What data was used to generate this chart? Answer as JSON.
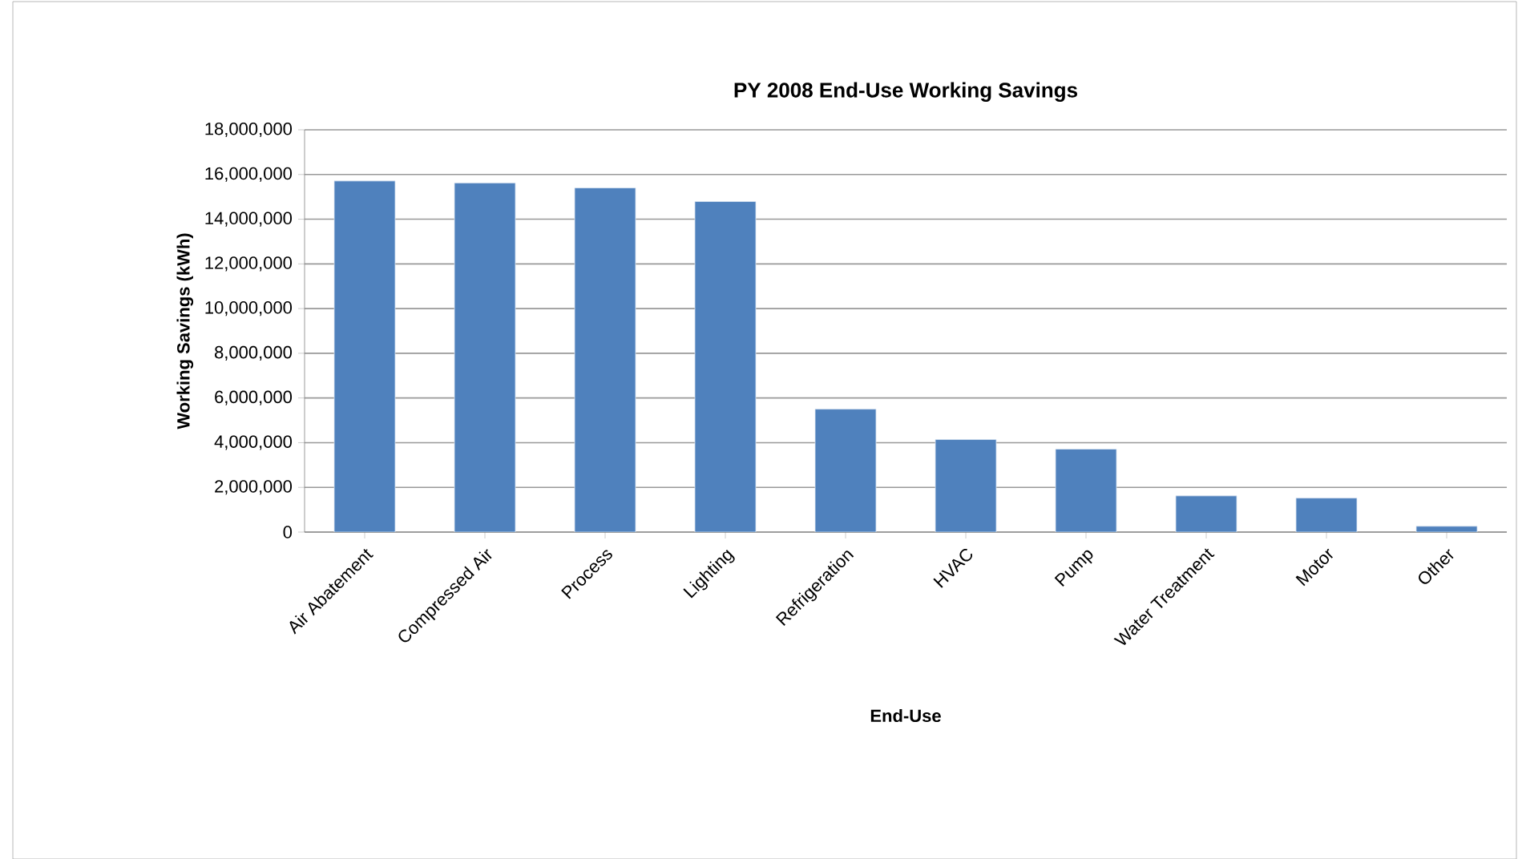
{
  "chart_data": {
    "type": "bar",
    "title": "PY 2008 End-Use Working Savings",
    "xlabel": "End-Use",
    "ylabel": "Working Savings  (kWh)",
    "categories": [
      "Air Abatement",
      "Compressed Air",
      "Process",
      "Lighting",
      "Refrigeration",
      "HVAC",
      "Pump",
      "Water Treatment",
      "Motor",
      "Other"
    ],
    "values": [
      15710000,
      15620000,
      15400000,
      14790000,
      5500000,
      4140000,
      3710000,
      1620000,
      1520000,
      260000
    ],
    "color": "#4f81bd",
    "ylim": [
      0,
      18000000
    ],
    "yticks": [
      {
        "value": 0,
        "label": "0"
      },
      {
        "value": 2000000,
        "label": "2,000,000"
      },
      {
        "value": 4000000,
        "label": "4,000,000"
      },
      {
        "value": 6000000,
        "label": "6,000,000"
      },
      {
        "value": 8000000,
        "label": "8,000,000"
      },
      {
        "value": 10000000,
        "label": "10,000,000"
      },
      {
        "value": 12000000,
        "label": "12,000,000"
      },
      {
        "value": 14000000,
        "label": "14,000,000"
      },
      {
        "value": 16000000,
        "label": "16,000,000"
      },
      {
        "value": 18000000,
        "label": "18,000,000"
      }
    ],
    "grid": "y"
  }
}
